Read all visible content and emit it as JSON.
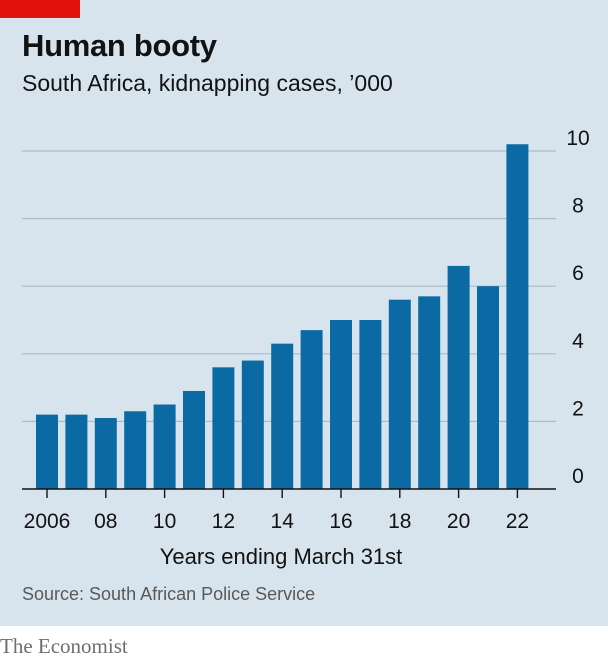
{
  "title": "Human booty",
  "subtitle": "South Africa, kidnapping cases, ’000",
  "source": "Source: South African Police Service",
  "brand": "The Economist",
  "colors": {
    "bar": "#0b6aa3",
    "background": "#d7e4ee",
    "gridline": "#a9bcc8",
    "accent": "#e3120b"
  },
  "chart_data": {
    "type": "bar",
    "xlabel": "Years ending March 31st",
    "ylabel": "",
    "ylim": [
      0,
      10
    ],
    "yticks": [
      0,
      2,
      4,
      6,
      8,
      10
    ],
    "grid": true,
    "y_axis_side": "right",
    "categories": [
      "2006",
      "2007",
      "2008",
      "2009",
      "2010",
      "2011",
      "2012",
      "2013",
      "2014",
      "2015",
      "2016",
      "2017",
      "2018",
      "2019",
      "2020",
      "2021",
      "2022"
    ],
    "tick_labels": [
      "2006",
      "",
      "08",
      "",
      "10",
      "",
      "12",
      "",
      "14",
      "",
      "16",
      "",
      "18",
      "",
      "20",
      "",
      "22"
    ],
    "values": [
      2.2,
      2.2,
      2.1,
      2.3,
      2.5,
      2.9,
      3.6,
      3.8,
      4.3,
      4.7,
      5.0,
      5.0,
      5.6,
      5.7,
      6.6,
      6.0,
      10.2
    ]
  }
}
